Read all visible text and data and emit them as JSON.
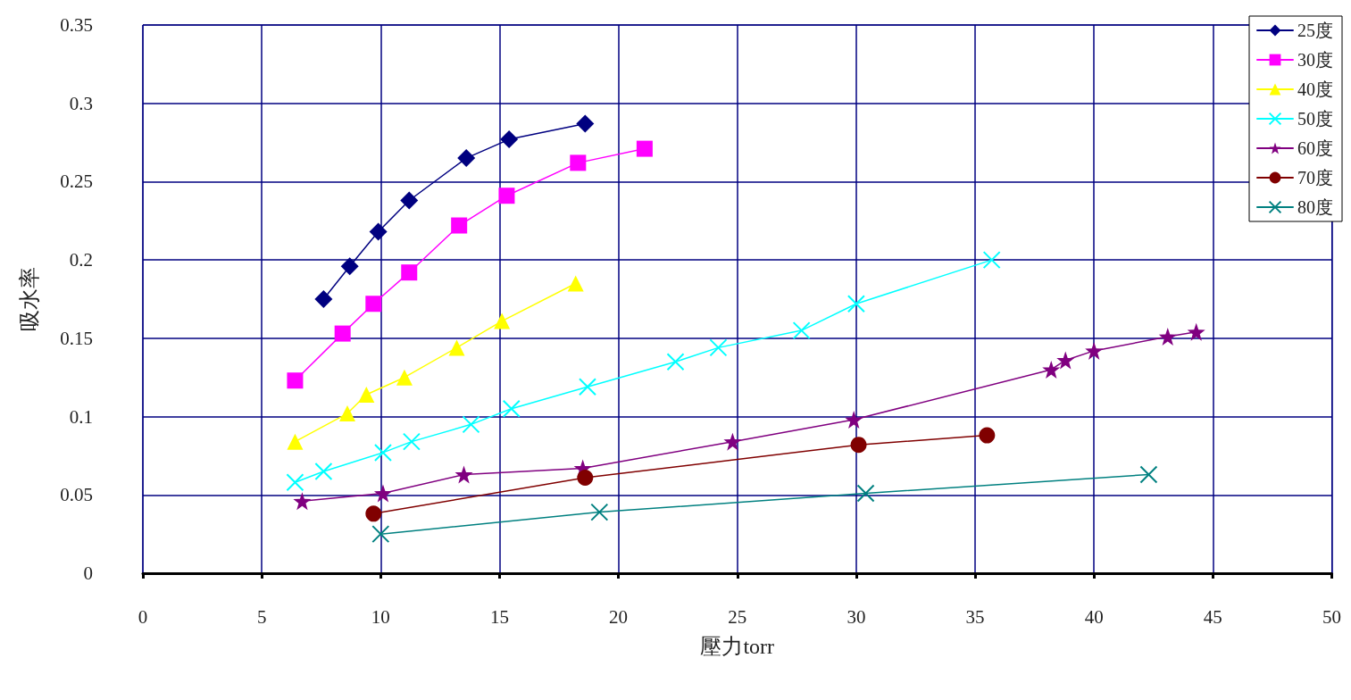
{
  "chart_data": {
    "type": "line",
    "xlabel": "壓力torr",
    "ylabel": "吸水率",
    "xlim": [
      0,
      50
    ],
    "xticks": [
      0,
      5,
      10,
      15,
      20,
      25,
      30,
      35,
      40,
      45,
      50
    ],
    "ylim": [
      0,
      0.35
    ],
    "yticks": [
      0,
      0.05,
      0.1,
      0.15,
      0.2,
      0.25,
      0.3,
      0.35
    ],
    "grid": true,
    "legend": "top right",
    "line_style": "solid",
    "series": [
      {
        "name": "25度",
        "color": "#000080",
        "marker": "diamond",
        "x": [
          7.6,
          8.7,
          9.9,
          11.2,
          13.6,
          15.4,
          18.6
        ],
        "values": [
          0.175,
          0.196,
          0.218,
          0.238,
          0.265,
          0.277,
          0.287
        ]
      },
      {
        "name": "30度",
        "color": "#ff00ff",
        "marker": "square",
        "x": [
          6.4,
          8.4,
          9.7,
          11.2,
          13.3,
          15.3,
          18.3,
          21.1
        ],
        "values": [
          0.123,
          0.153,
          0.172,
          0.192,
          0.222,
          0.241,
          0.262,
          0.271
        ]
      },
      {
        "name": "40度",
        "color": "#ffff00",
        "marker": "triangle",
        "x": [
          6.4,
          8.6,
          9.4,
          11.0,
          13.2,
          15.1,
          18.2
        ],
        "values": [
          0.084,
          0.102,
          0.114,
          0.125,
          0.144,
          0.161,
          0.185
        ]
      },
      {
        "name": "50度",
        "color": "#00ffff",
        "marker": "cross",
        "x": [
          6.4,
          7.6,
          10.1,
          11.3,
          13.8,
          15.5,
          18.7,
          22.4,
          24.2,
          27.7,
          30.0,
          35.7
        ],
        "values": [
          0.058,
          0.065,
          0.077,
          0.084,
          0.095,
          0.105,
          0.119,
          0.135,
          0.144,
          0.155,
          0.172,
          0.2
        ]
      },
      {
        "name": "60度",
        "color": "#800080",
        "marker": "star",
        "x": [
          6.7,
          10.1,
          13.5,
          18.5,
          24.8,
          29.9,
          38.2,
          38.8,
          40.0,
          43.1,
          44.3
        ],
        "values": [
          0.046,
          0.051,
          0.063,
          0.067,
          0.084,
          0.098,
          0.13,
          0.136,
          0.142,
          0.151,
          0.154
        ]
      },
      {
        "name": "70度",
        "color": "#800000",
        "marker": "circle",
        "x": [
          9.7,
          18.6,
          30.1,
          35.5
        ],
        "values": [
          0.038,
          0.061,
          0.082,
          0.088
        ]
      },
      {
        "name": "80度",
        "color": "#008080",
        "marker": "cross",
        "x": [
          10.0,
          19.2,
          30.4,
          42.3
        ],
        "values": [
          0.025,
          0.039,
          0.051,
          0.063
        ]
      }
    ]
  }
}
